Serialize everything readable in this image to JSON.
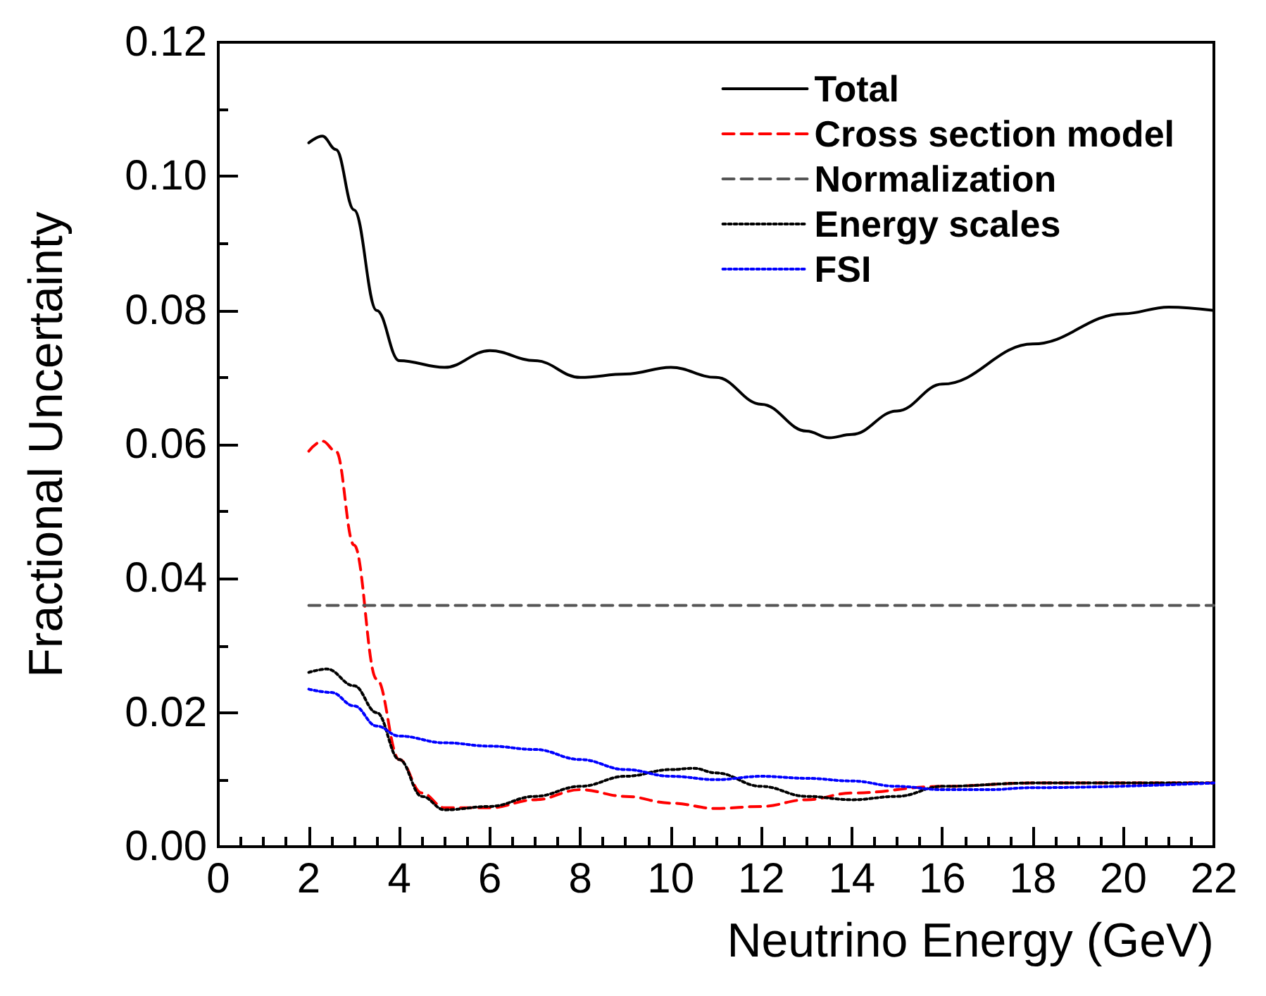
{
  "chart_data": {
    "type": "line",
    "xlabel": "Neutrino Energy (GeV)",
    "ylabel": "Fractional Uncertainty",
    "xlim": [
      0,
      22
    ],
    "xticks": [
      0,
      2,
      4,
      6,
      8,
      10,
      12,
      14,
      16,
      18,
      20,
      22
    ],
    "ylim": [
      0,
      0.12
    ],
    "yticks": [
      {
        "value": 0,
        "label": "0.00"
      },
      {
        "value": 0.02,
        "label": "0.02"
      },
      {
        "value": 0.04,
        "label": "0.04"
      },
      {
        "value": 0.06,
        "label": "0.06"
      },
      {
        "value": 0.08,
        "label": "0.08"
      },
      {
        "value": 0.1,
        "label": "0.10"
      },
      {
        "value": 0.12,
        "label": "0.12"
      }
    ],
    "grid": false,
    "legend": "top right",
    "marker": "none",
    "series": [
      {
        "name": "Total",
        "color": "#000000",
        "line_style": "solid",
        "x": [
          2,
          2.3,
          2.6,
          3,
          3.5,
          4,
          5,
          6,
          7,
          8,
          9,
          10,
          11,
          12,
          13,
          13.5,
          14,
          15,
          16,
          18,
          20,
          21,
          22
        ],
        "values": [
          0.105,
          0.106,
          0.104,
          0.095,
          0.08,
          0.0725,
          0.0715,
          0.074,
          0.0725,
          0.07,
          0.0705,
          0.0715,
          0.07,
          0.066,
          0.062,
          0.061,
          0.0615,
          0.065,
          0.069,
          0.075,
          0.0795,
          0.0805,
          0.08
        ]
      },
      {
        "name": "Cross section model",
        "color": "#ff0000",
        "line_style": "dashed",
        "x": [
          2,
          2.3,
          2.6,
          3,
          3.5,
          4,
          4.5,
          5,
          6,
          7,
          8,
          9,
          10,
          11,
          12,
          13,
          14,
          16,
          18,
          22
        ],
        "values": [
          0.059,
          0.0605,
          0.059,
          0.045,
          0.025,
          0.013,
          0.008,
          0.0058,
          0.0058,
          0.007,
          0.0085,
          0.0075,
          0.0065,
          0.0057,
          0.006,
          0.007,
          0.008,
          0.009,
          0.0095,
          0.0095
        ]
      },
      {
        "name": "Normalization",
        "color": "#555555",
        "line_style": "dashed",
        "x": [
          2,
          22
        ],
        "values": [
          0.036,
          0.036
        ]
      },
      {
        "name": "Energy scales",
        "color": "#000000",
        "line_style": "dotted",
        "x": [
          2,
          2.4,
          3,
          3.5,
          4,
          4.5,
          5,
          6,
          7,
          8,
          9,
          10,
          10.5,
          11,
          12,
          13,
          14,
          15,
          16,
          18,
          22
        ],
        "values": [
          0.026,
          0.0265,
          0.024,
          0.02,
          0.013,
          0.0075,
          0.0055,
          0.006,
          0.0075,
          0.009,
          0.0105,
          0.0115,
          0.0117,
          0.011,
          0.009,
          0.0075,
          0.007,
          0.0075,
          0.009,
          0.0095,
          0.0095
        ]
      },
      {
        "name": "FSI",
        "color": "#0000ff",
        "line_style": "dotted",
        "x": [
          2,
          2.5,
          3,
          3.5,
          4,
          5,
          6,
          7,
          8,
          9,
          10,
          11,
          12,
          13,
          14,
          15,
          16,
          17,
          18,
          22
        ],
        "values": [
          0.0235,
          0.023,
          0.021,
          0.018,
          0.0165,
          0.0155,
          0.015,
          0.0145,
          0.013,
          0.0115,
          0.0105,
          0.01,
          0.0105,
          0.0102,
          0.0098,
          0.009,
          0.0085,
          0.0085,
          0.0088,
          0.0095
        ]
      }
    ]
  }
}
